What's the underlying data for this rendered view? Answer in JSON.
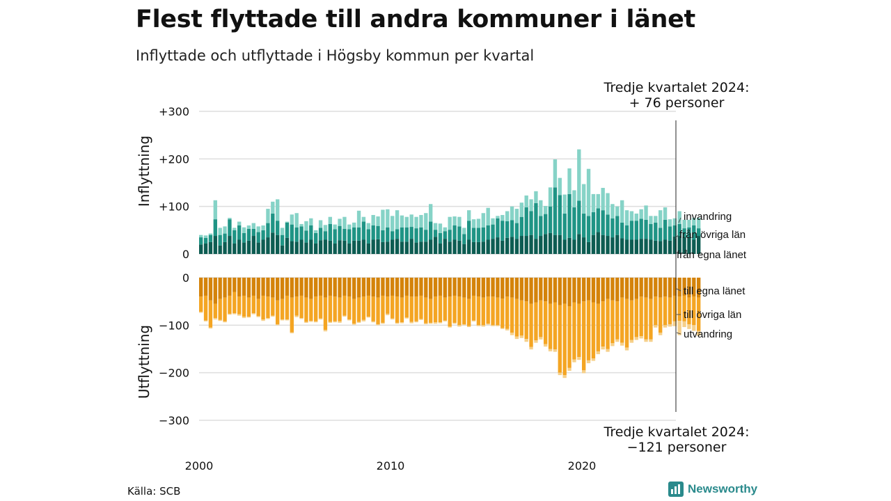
{
  "header": {
    "title": "Flest flyttade till andra kommuner i länet",
    "subtitle": "Inflyttade och utflyttade i Högsby kommun per kvartal"
  },
  "footer": {
    "source": "Källa: SCB",
    "brand": "Newsworthy"
  },
  "colors": {
    "in_egna": "#0d5c52",
    "in_ovriga": "#1f9485",
    "in_invandring": "#86d3c7",
    "ut_egna": "#d4830a",
    "ut_ovriga": "#f4a523",
    "ut_utvandring": "#f6d08a",
    "grid": "#dddddd",
    "brand": "#2a8a8c"
  },
  "chart_data": {
    "type": "bar",
    "stacked": true,
    "grid": true,
    "x_ticks": [
      "2000",
      "2010",
      "2020"
    ],
    "y_ticks_top": [
      "+300",
      "+200",
      "+100",
      "0"
    ],
    "y_ticks_bottom": [
      "0",
      "−100",
      "−200",
      "−300"
    ],
    "ylabel_top": "Inflyttning",
    "ylabel_bottom": "Utflyttning",
    "ylim_top": [
      0,
      300
    ],
    "ylim_bottom": [
      -300,
      0
    ],
    "start": {
      "year": 2000,
      "quarter": 1
    },
    "annotation_top": [
      "Tredje kvartalet 2024:",
      "+ 76 personer"
    ],
    "annotation_bottom": [
      "Tredje kvartalet 2024:",
      "−121 personer"
    ],
    "inflyttning": {
      "series_names": [
        "från egna länet",
        "från övriga län",
        "invandring"
      ],
      "egna": [
        20,
        22,
        25,
        38,
        18,
        25,
        38,
        22,
        30,
        24,
        28,
        38,
        24,
        30,
        35,
        45,
        40,
        18,
        34,
        27,
        26,
        30,
        24,
        30,
        22,
        29,
        30,
        28,
        22,
        29,
        28,
        22,
        28,
        28,
        30,
        22,
        30,
        31,
        25,
        26,
        30,
        32,
        26,
        26,
        32,
        24,
        26,
        26,
        30,
        36,
        22,
        32,
        26,
        30,
        28,
        21,
        30,
        25,
        25,
        26,
        30,
        32,
        35,
        28,
        34,
        36,
        32,
        38,
        38,
        40,
        32,
        38,
        42,
        44,
        40,
        40,
        30,
        34,
        30,
        42,
        35,
        25,
        40,
        46,
        40,
        38,
        35,
        40,
        33,
        30,
        30,
        30,
        32,
        32,
        30,
        28,
        27,
        30,
        28,
        37,
        38,
        36,
        36,
        30,
        38
      ],
      "ovriga": [
        15,
        12,
        15,
        35,
        22,
        18,
        35,
        28,
        30,
        20,
        25,
        15,
        22,
        20,
        30,
        40,
        30,
        22,
        32,
        35,
        30,
        28,
        25,
        30,
        22,
        26,
        18,
        35,
        30,
        30,
        25,
        30,
        28,
        28,
        38,
        30,
        30,
        28,
        25,
        30,
        18,
        20,
        30,
        30,
        25,
        30,
        30,
        25,
        38,
        15,
        22,
        16,
        25,
        30,
        30,
        21,
        40,
        30,
        30,
        30,
        30,
        30,
        40,
        42,
        35,
        35,
        33,
        40,
        60,
        50,
        75,
        42,
        42,
        56,
        100,
        84,
        55,
        92,
        68,
        70,
        50,
        55,
        48,
        50,
        52,
        45,
        40,
        40,
        33,
        30,
        40,
        40,
        42,
        40,
        33,
        38,
        28,
        42,
        30,
        23,
        25,
        18,
        20,
        30,
        16
      ],
      "invandring": [
        5,
        5,
        3,
        40,
        15,
        15,
        3,
        5,
        8,
        12,
        7,
        12,
        12,
        10,
        30,
        25,
        45,
        15,
        2,
        21,
        30,
        5,
        20,
        15,
        6,
        16,
        13,
        15,
        10,
        15,
        25,
        10,
        10,
        35,
        10,
        13,
        22,
        20,
        43,
        38,
        32,
        40,
        25,
        22,
        26,
        24,
        26,
        35,
        37,
        14,
        20,
        8,
        27,
        19,
        20,
        13,
        22,
        18,
        19,
        30,
        37,
        13,
        5,
        12,
        21,
        29,
        30,
        30,
        25,
        25,
        25,
        33,
        17,
        40,
        59,
        36,
        40,
        54,
        36,
        108,
        62,
        99,
        38,
        30,
        47,
        45,
        30,
        20,
        47,
        32,
        20,
        15,
        20,
        30,
        17,
        14,
        37,
        26,
        15,
        15,
        27,
        18,
        16,
        16,
        22
      ]
    },
    "utflyttning": {
      "series_names": [
        "till egna länet",
        "till övriga län",
        "utvandring"
      ],
      "egna": [
        -40,
        -38,
        -48,
        -55,
        -45,
        -42,
        -38,
        -30,
        -40,
        -38,
        -42,
        -38,
        -45,
        -38,
        -40,
        -42,
        -48,
        -45,
        -38,
        -42,
        -40,
        -38,
        -42,
        -45,
        -40,
        -38,
        -42,
        -38,
        -40,
        -42,
        -38,
        -40,
        -45,
        -42,
        -40,
        -38,
        -40,
        -42,
        -38,
        -40,
        -38,
        -40,
        -42,
        -38,
        -40,
        -40,
        -38,
        -42,
        -45,
        -40,
        -38,
        -42,
        -40,
        -38,
        -40,
        -42,
        -45,
        -38,
        -40,
        -42,
        -40,
        -40,
        -42,
        -44,
        -40,
        -42,
        -45,
        -48,
        -50,
        -55,
        -52,
        -48,
        -50,
        -55,
        -52,
        -58,
        -55,
        -60,
        -52,
        -55,
        -50,
        -48,
        -52,
        -55,
        -50,
        -45,
        -48,
        -50,
        -42,
        -45,
        -48,
        -45,
        -40,
        -42,
        -45,
        -40,
        -42,
        -40,
        -42,
        -38,
        -40,
        -38,
        -42,
        -40,
        -42
      ],
      "ovriga": [
        -32,
        -52,
        -57,
        -30,
        -44,
        -50,
        -38,
        -45,
        -37,
        -44,
        -40,
        -37,
        -36,
        -50,
        -45,
        -38,
        -50,
        -43,
        -50,
        -73,
        -40,
        -47,
        -51,
        -46,
        -52,
        -48,
        -68,
        -55,
        -52,
        -50,
        -42,
        -48,
        -52,
        -51,
        -49,
        -44,
        -52,
        -56,
        -57,
        -36,
        -48,
        -55,
        -52,
        -46,
        -53,
        -52,
        -49,
        -54,
        -50,
        -54,
        -56,
        -48,
        -63,
        -57,
        -60,
        -56,
        -57,
        -52,
        -60,
        -58,
        -57,
        -60,
        -58,
        -62,
        -68,
        -74,
        -79,
        -74,
        -79,
        -91,
        -80,
        -77,
        -90,
        -95,
        -99,
        -142,
        -150,
        -130,
        -120,
        -112,
        -145,
        -126,
        -118,
        -100,
        -95,
        -105,
        -90,
        -80,
        -95,
        -102,
        -83,
        -80,
        -83,
        -88,
        -85,
        -60,
        -74,
        -60,
        -56,
        -54,
        -51,
        -54,
        -56,
        -60,
        -70
      ],
      "utvandring": [
        -2,
        -2,
        -2,
        -3,
        -2,
        -2,
        -2,
        -2,
        -3,
        -3,
        -2,
        -2,
        -2,
        -3,
        -2,
        -2,
        -2,
        -2,
        -2,
        -2,
        -3,
        -2,
        -2,
        -2,
        -2,
        -2,
        -3,
        -2,
        -2,
        -3,
        -2,
        -2,
        -2,
        -2,
        -3,
        -2,
        -2,
        -2,
        -2,
        -3,
        -2,
        -2,
        -2,
        -2,
        -3,
        -2,
        -2,
        -2,
        -2,
        -3,
        -2,
        -2,
        -2,
        -2,
        -3,
        -2,
        -2,
        -2,
        -2,
        -3,
        -2,
        -2,
        -2,
        -2,
        -3,
        -5,
        -5,
        -5,
        -6,
        -5,
        -5,
        -5,
        -5,
        -5,
        -5,
        -5,
        -6,
        -6,
        -6,
        -6,
        -6,
        -6,
        -5,
        -6,
        -6,
        -6,
        -6,
        -5,
        -6,
        -6,
        -6,
        -6,
        -5,
        -5,
        -5,
        -5,
        -5,
        -5,
        -5,
        -10,
        -30,
        -12,
        -10,
        -12,
        -10
      ]
    }
  }
}
